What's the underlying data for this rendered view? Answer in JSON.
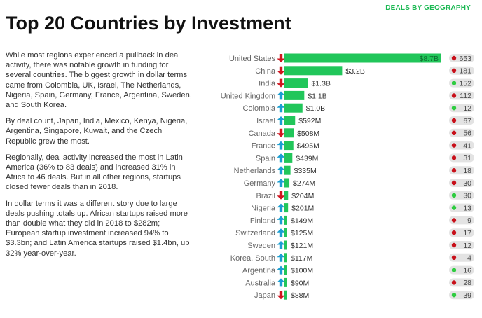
{
  "header": {
    "section_tag": "DEALS BY GEOGRAPHY",
    "title": "Top 20 Countries by Investment"
  },
  "body": {
    "paragraphs": [
      "While most regions experienced a pullback in deal activity, there was notable growth in funding for several countries. The biggest growth in dollar terms came from Colombia, UK, Israel, The Netherlands, Nigeria, Spain, Germany, France, Argentina, Sweden, and South Korea.",
      "By deal count, Japan, India, Mexico, Kenya, Nigeria, Argentina, Singapore, Kuwait, and the Czech Republic grew the most.",
      "Regionally, deal activity increased the most in Latin America (36% to 83 deals) and increased 31% in Africa to 46 deals. But in all other regions, startups closed fewer deals than in 2018.",
      "In dollar terms it was a different story due to large deals pushing totals up. African startups raised more than double what they did in 2018 to $282m; European startup investment increased 94% to $3.3bn; and Latin America startups raised $1.4bn, up 32% year-over-year."
    ]
  },
  "colors": {
    "bar": "#21c65a",
    "arrow_up": "#1a9ed2",
    "arrow_down": "#d0151f",
    "dot_up": "#2ecc40",
    "dot_down": "#c8101a",
    "pill": "#e3e3e3",
    "accent": "#1db954"
  },
  "chart_data": {
    "type": "bar",
    "orientation": "horizontal",
    "value_unit": "USD billions",
    "categories": [
      "United States",
      "China",
      "India",
      "United Kingdom",
      "Colombia",
      "Israel",
      "Canada",
      "France",
      "Spain",
      "Netherlands",
      "Germany",
      "Brazil",
      "Nigeria",
      "Finland",
      "Switzerland",
      "Sweden",
      "Korea, South",
      "Argentina",
      "Australia",
      "Japan"
    ],
    "values": [
      8.7,
      3.2,
      1.3,
      1.1,
      1.0,
      0.592,
      0.508,
      0.495,
      0.439,
      0.335,
      0.274,
      0.204,
      0.201,
      0.149,
      0.125,
      0.121,
      0.117,
      0.1,
      0.09,
      0.088
    ],
    "value_labels": [
      "$8.7B",
      "$3.2B",
      "$1.3B",
      "$1.1B",
      "$1.0B",
      "$592M",
      "$508M",
      "$495M",
      "$439M",
      "$335M",
      "$274M",
      "$204M",
      "$201M",
      "$149M",
      "$125M",
      "$121M",
      "$117M",
      "$100M",
      "$90M",
      "$88M"
    ],
    "investment_trend": [
      "down",
      "down",
      "down",
      "up",
      "up",
      "up",
      "down",
      "up",
      "up",
      "up",
      "up",
      "down",
      "up",
      "up",
      "up",
      "up",
      "up",
      "up",
      "up",
      "down"
    ],
    "deal_counts": [
      653,
      181,
      152,
      112,
      12,
      67,
      56,
      41,
      31,
      18,
      30,
      30,
      13,
      9,
      17,
      12,
      4,
      16,
      28,
      39
    ],
    "deal_trend": [
      "down",
      "down",
      "up",
      "down",
      "up",
      "down",
      "down",
      "down",
      "down",
      "down",
      "down",
      "up",
      "up",
      "down",
      "down",
      "down",
      "down",
      "up",
      "down",
      "up"
    ]
  }
}
